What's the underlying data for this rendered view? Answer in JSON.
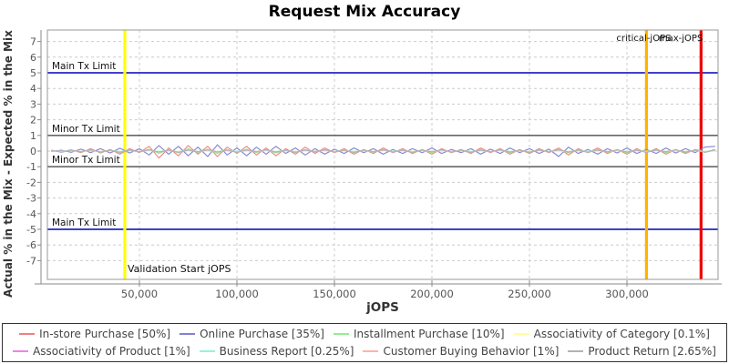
{
  "title": "Request Mix Accuracy",
  "chart_data": {
    "type": "line",
    "title": "Request Mix Accuracy",
    "xlabel": "jOPS",
    "ylabel": "Actual % in the Mix - Expected % in the Mix",
    "xlim": [
      3000,
      347000
    ],
    "ylim": [
      -8.2,
      7.75
    ],
    "grid": true,
    "legend_position": "bottom",
    "x_ticks": [
      {
        "value": 50000,
        "label": "50,000"
      },
      {
        "value": 100000,
        "label": "100,000"
      },
      {
        "value": 150000,
        "label": "150,000"
      },
      {
        "value": 200000,
        "label": "200,000"
      },
      {
        "value": 250000,
        "label": "250,000"
      },
      {
        "value": 300000,
        "label": "300,000"
      }
    ],
    "y_ticks": [
      -7,
      -6,
      -5,
      -4,
      -3,
      -2,
      -1,
      0,
      1,
      2,
      3,
      4,
      5,
      6,
      7
    ],
    "limit_lines": [
      {
        "label": "Main Tx Limit",
        "y": 5,
        "color": "#0000bb"
      },
      {
        "label": "Minor Tx Limit",
        "y": 1,
        "color": "#666666"
      },
      {
        "label": "Minor Tx Limit",
        "y": -1,
        "color": "#666666"
      },
      {
        "label": "Main Tx Limit",
        "y": -5,
        "color": "#0000bb"
      }
    ],
    "event_lines": [
      {
        "label": "Validation Start jOPS",
        "x": 42500,
        "color": "#ffff00",
        "label_pos": "bottom"
      },
      {
        "label": "critical-jOPS",
        "x": 310000,
        "color": "#ffb300",
        "label_pos": "top-center"
      },
      {
        "label": "max-jOPS",
        "x": 338000,
        "color": "#ee0000",
        "label_pos": "top-end"
      }
    ],
    "x_start": 5000,
    "x_step": 5000,
    "series": [
      {
        "name": "In-store Purchase [50%]",
        "color": "#f08080",
        "values": [
          0.02,
          -0.05,
          0.08,
          -0.1,
          0.15,
          -0.12,
          0.1,
          -0.2,
          0.15,
          -0.1,
          0.3,
          -0.45,
          0.2,
          -0.3,
          0.35,
          -0.2,
          0.3,
          -0.35,
          0.25,
          -0.15,
          0.3,
          -0.25,
          0.2,
          -0.3,
          0.15,
          -0.2,
          0.25,
          -0.15,
          0.2,
          -0.1,
          0.15,
          -0.2,
          0.1,
          -0.15,
          0.2,
          -0.1,
          0.15,
          -0.15,
          0.1,
          -0.2,
          0.15,
          -0.1,
          0.1,
          -0.15,
          0.2,
          -0.1,
          0.15,
          -0.2,
          0.1,
          -0.15,
          0.15,
          -0.1,
          0.2,
          -0.25,
          0.15,
          -0.1,
          0.2,
          -0.15,
          0.1,
          -0.2,
          0.15,
          -0.1,
          0.15,
          -0.2,
          0.1,
          -0.15,
          0.1,
          -0.05,
          0.08
        ]
      },
      {
        "name": "Online Purchase [35%]",
        "color": "#8282d2",
        "values": [
          -0.03,
          0.06,
          -0.08,
          0.12,
          -0.1,
          0.15,
          -0.12,
          0.18,
          -0.12,
          0.15,
          -0.25,
          0.35,
          -0.2,
          0.3,
          -0.3,
          0.25,
          -0.35,
          0.4,
          -0.25,
          0.2,
          -0.3,
          0.25,
          -0.2,
          0.3,
          -0.15,
          0.2,
          -0.25,
          0.15,
          -0.2,
          0.12,
          -0.15,
          0.2,
          -0.1,
          0.15,
          -0.2,
          0.1,
          -0.15,
          0.15,
          -0.1,
          0.2,
          -0.15,
          0.1,
          -0.1,
          0.15,
          -0.2,
          0.12,
          -0.15,
          0.2,
          -0.1,
          0.15,
          -0.15,
          0.12,
          -0.35,
          0.25,
          -0.15,
          0.1,
          -0.2,
          0.15,
          -0.12,
          0.2,
          -0.15,
          0.1,
          -0.15,
          0.2,
          -0.12,
          0.15,
          -0.1,
          0.25,
          0.3
        ]
      },
      {
        "name": "Installment Purchase [10%]",
        "color": "#90ee90",
        "values": [
          0.01,
          -0.03,
          0.05,
          -0.06,
          0.08,
          -0.08,
          0.06,
          -0.1,
          0.08,
          -0.06,
          0.12,
          -0.15,
          0.1,
          -0.12,
          0.15,
          -0.1,
          0.12,
          -0.15,
          0.1,
          -0.08,
          0.12,
          -0.1,
          0.08,
          -0.12,
          0.06,
          -0.08,
          0.1,
          -0.06,
          0.08,
          -0.05,
          0.08,
          -0.1,
          0.05,
          -0.08,
          0.1,
          -0.05,
          0.08,
          -0.08,
          0.05,
          -0.1,
          0.08,
          -0.05,
          0.05,
          -0.08,
          0.1,
          -0.05,
          0.08,
          -0.1,
          0.05,
          -0.08,
          0.08,
          -0.05,
          0.1,
          -0.12,
          0.08,
          -0.05,
          0.1,
          -0.08,
          0.05,
          -0.1,
          0.08,
          -0.05,
          0.08,
          -0.1,
          0.05,
          -0.08,
          0.05,
          -0.03,
          0.04
        ]
      },
      {
        "name": "Associativity of Category [0.1%]",
        "color": "#ffff9a",
        "values": [
          0.01,
          -0.02,
          0.02,
          -0.01,
          0.01,
          -0.02,
          0.02,
          -0.01,
          0.01,
          -0.02,
          0.02,
          -0.01,
          0.01,
          -0.02,
          0.02,
          -0.01,
          0.01,
          -0.02,
          0.02,
          -0.01,
          0.01,
          -0.02,
          0.02,
          -0.01,
          0.01,
          -0.02,
          0.02,
          -0.01,
          0.01,
          -0.02,
          0.02,
          -0.01,
          0.01,
          -0.02,
          0.02,
          -0.01,
          0.01,
          -0.02,
          0.02,
          -0.01,
          0.01,
          -0.02,
          0.02,
          -0.01,
          0.01,
          -0.02,
          0.02,
          -0.01,
          0.01,
          -0.02,
          0.02,
          -0.01,
          0.01,
          -0.02,
          0.02,
          -0.01,
          0.01,
          -0.02,
          0.02,
          -0.01,
          0.01,
          -0.02,
          0.02,
          -0.01,
          0.01,
          -0.02,
          0.02,
          -0.01,
          0.01
        ]
      },
      {
        "name": "Associativity of Product [1%]",
        "color": "#ee82ee",
        "values": [
          0.03,
          -0.05,
          0.04,
          -0.03,
          0.05,
          -0.04,
          0.03,
          -0.05,
          0.04,
          -0.03,
          0.05,
          -0.04,
          0.03,
          -0.05,
          0.04,
          -0.03,
          0.05,
          -0.04,
          0.03,
          -0.05,
          0.04,
          -0.03,
          0.05,
          -0.04,
          0.03,
          -0.05,
          0.04,
          -0.03,
          0.05,
          -0.04,
          0.03,
          -0.05,
          0.04,
          -0.03,
          0.05,
          -0.04,
          0.03,
          -0.05,
          0.04,
          -0.03,
          0.05,
          -0.04,
          0.03,
          -0.05,
          0.04,
          -0.03,
          0.05,
          -0.04,
          0.03,
          -0.05,
          0.04,
          -0.03,
          0.05,
          -0.04,
          0.03,
          -0.05,
          0.04,
          -0.03,
          0.05,
          -0.04,
          0.03,
          -0.05,
          0.04,
          -0.03,
          0.05,
          -0.04,
          0.03,
          -0.05,
          0.04
        ]
      },
      {
        "name": "Business Report [0.25%]",
        "color": "#90f5e0",
        "values": [
          0.02,
          -0.03,
          0.03,
          -0.02,
          0.02,
          -0.03,
          0.03,
          -0.02,
          0.02,
          -0.03,
          0.03,
          -0.02,
          0.02,
          -0.03,
          0.03,
          -0.02,
          0.02,
          -0.03,
          0.03,
          -0.02,
          0.02,
          -0.03,
          0.03,
          -0.02,
          0.02,
          -0.03,
          0.03,
          -0.02,
          0.02,
          -0.03,
          0.03,
          -0.02,
          0.02,
          -0.03,
          0.03,
          -0.02,
          0.02,
          -0.03,
          0.03,
          -0.02,
          0.02,
          -0.03,
          0.03,
          -0.02,
          0.02,
          -0.03,
          0.03,
          -0.02,
          0.02,
          -0.03,
          0.03,
          -0.02,
          0.02,
          -0.03,
          0.03,
          -0.02,
          0.02,
          -0.03,
          0.03,
          -0.02,
          0.02,
          -0.03,
          0.03,
          -0.02,
          0.02,
          -0.03,
          0.03,
          -0.02,
          0.02
        ]
      },
      {
        "name": "Customer Buying Behavior [1%]",
        "color": "#ffb3ab",
        "values": [
          0.05,
          -0.07,
          0.06,
          -0.04,
          0.07,
          -0.06,
          0.05,
          -0.07,
          0.06,
          -0.04,
          0.07,
          -0.06,
          0.05,
          -0.07,
          0.06,
          -0.04,
          0.07,
          -0.06,
          0.05,
          -0.07,
          0.06,
          -0.04,
          0.07,
          -0.06,
          0.05,
          -0.07,
          0.06,
          -0.04,
          0.07,
          -0.06,
          0.05,
          -0.07,
          0.06,
          -0.04,
          0.07,
          -0.06,
          0.05,
          -0.07,
          0.06,
          -0.04,
          0.07,
          -0.06,
          0.05,
          -0.07,
          0.06,
          -0.04,
          0.07,
          -0.06,
          0.05,
          -0.07,
          0.06,
          -0.04,
          0.07,
          -0.06,
          0.05,
          -0.07,
          0.06,
          -0.04,
          0.07,
          -0.06,
          0.05,
          -0.07,
          0.06,
          -0.04,
          0.07,
          -0.06,
          0.05,
          -0.07,
          0.06
        ]
      },
      {
        "name": "Product Return [2.65%]",
        "color": "#b3b3b3",
        "values": [
          0.06,
          -0.09,
          0.07,
          -0.05,
          0.09,
          -0.07,
          0.06,
          -0.09,
          0.07,
          -0.05,
          0.09,
          -0.07,
          0.06,
          -0.09,
          0.07,
          -0.05,
          0.09,
          -0.07,
          0.06,
          -0.09,
          0.07,
          -0.05,
          0.09,
          -0.07,
          0.06,
          -0.09,
          0.07,
          -0.05,
          0.09,
          -0.07,
          0.06,
          -0.09,
          0.07,
          -0.05,
          0.09,
          -0.07,
          0.06,
          -0.09,
          0.07,
          -0.05,
          0.09,
          -0.07,
          0.06,
          -0.09,
          0.07,
          -0.05,
          0.09,
          -0.07,
          0.06,
          -0.09,
          0.07,
          -0.05,
          0.09,
          -0.07,
          0.06,
          -0.09,
          0.07,
          -0.05,
          0.09,
          -0.07,
          0.06,
          -0.09,
          0.07,
          -0.05,
          0.09,
          -0.07,
          0.06,
          -0.09,
          0.07
        ]
      }
    ]
  }
}
